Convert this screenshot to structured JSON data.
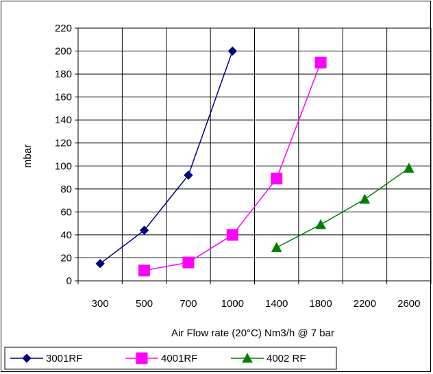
{
  "chart_data": {
    "type": "line",
    "categories": [
      "300",
      "500",
      "700",
      "1000",
      "1400",
      "1800",
      "2200",
      "2600"
    ],
    "ylabel": "mbar",
    "xlabel": "Air Flow rate (20°C) Nm3/h @ 7 bar",
    "ylim": [
      0,
      220
    ],
    "y_ticks": [
      0,
      20,
      40,
      60,
      80,
      100,
      120,
      140,
      160,
      180,
      200,
      220
    ],
    "grid": true,
    "legend_position": "bottom-left",
    "series": [
      {
        "name": "3001RF",
        "color": "#000080",
        "marker": "diamond",
        "values": [
          15,
          44,
          92,
          200,
          null,
          null,
          null,
          null
        ]
      },
      {
        "name": "4001RF",
        "color": "#ff00ff",
        "marker": "square",
        "values": [
          null,
          9,
          16,
          40,
          89,
          190,
          null,
          null
        ]
      },
      {
        "name": "4002 RF",
        "color": "#008000",
        "marker": "triangle",
        "values": [
          null,
          null,
          null,
          null,
          29,
          49,
          71,
          98
        ]
      }
    ]
  }
}
